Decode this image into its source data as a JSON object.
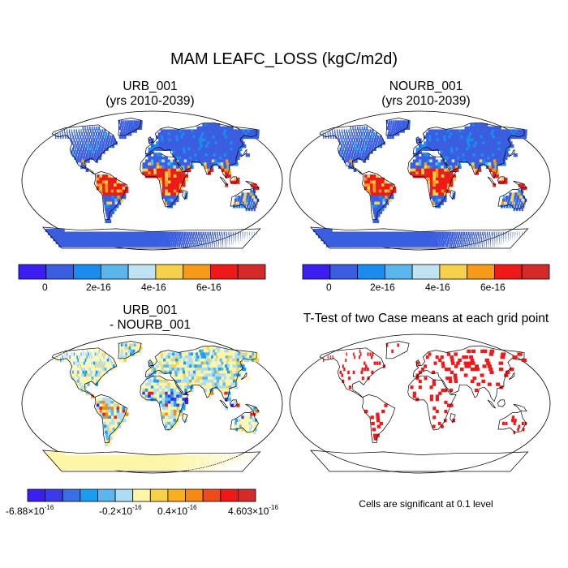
{
  "title": "MAM LEAFC_LOSS (kgC/m2d)",
  "panels": [
    {
      "title_line1": "URB_001",
      "title_line2": "(yrs 2010-2039)"
    },
    {
      "title_line1": "NOURB_001",
      "title_line2": "(yrs 2010-2039)"
    },
    {
      "title_line1": "URB_001",
      "title_line2": "- NOURB_001"
    },
    {
      "title_line1": "T-Test of two Case means at each grid point",
      "title_line2": ""
    }
  ],
  "colorbar_top": {
    "colors": [
      "#3a1ff0",
      "#3b5ee0",
      "#1a8cf0",
      "#5ab6ec",
      "#bfe3f0",
      "#f6d24a",
      "#f69a1a",
      "#ee1a1a",
      "#d42a2a"
    ],
    "labels": [
      "0",
      "2e-16",
      "4e-16",
      "6e-16"
    ]
  },
  "colorbar_diff": {
    "colors": [
      "#3a1ff0",
      "#3a3ae6",
      "#3b6fe6",
      "#1a9cf0",
      "#5ab6ec",
      "#aedcf2",
      "#fdf5a8",
      "#f6d24a",
      "#f6b020",
      "#f68a10",
      "#ee4a1a",
      "#ee1a1a",
      "#d42a2a"
    ],
    "labels": [
      "-6.88",
      "-0.2",
      "0.4",
      "4.603"
    ],
    "label_base": "×10",
    "label_exp": "-16"
  },
  "note": "Cells are significant at 0.1 level",
  "significance_color": "#ee1a1a"
}
